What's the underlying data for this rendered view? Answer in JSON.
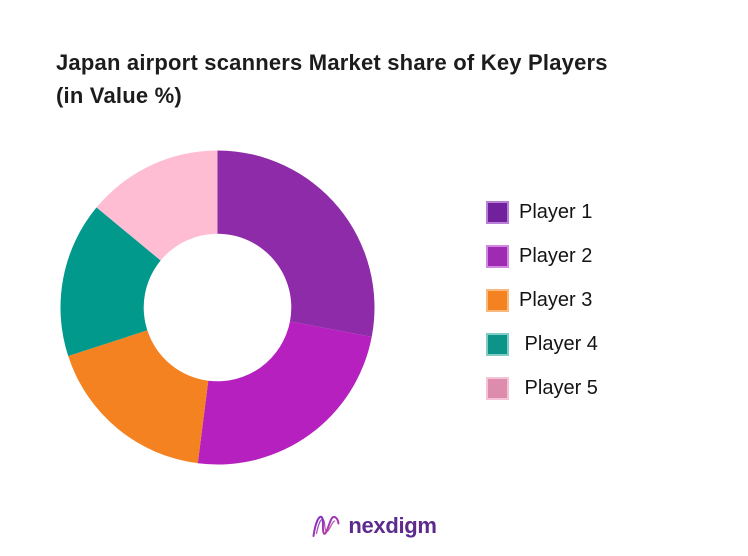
{
  "page": {
    "background": "#FFFFFF"
  },
  "header": {
    "title": "Japan airport scanners Market share of Key Players\n(in Value %)",
    "color": "#1C1C1C"
  },
  "chart_data": {
    "type": "pie",
    "subtype": "donut",
    "title": "Japan airport scanners Market share of Key Players (in Value %)",
    "labels": [
      "Player 1",
      "Player 2",
      "Player 3",
      "Player 4",
      "Player 5"
    ],
    "values": [
      28,
      24,
      18,
      16,
      14
    ],
    "colors": [
      "#8E2BA8",
      "#B520BE",
      "#F58221",
      "#00998C",
      "#FFBDD4"
    ],
    "start_angle_deg": 0,
    "direction": "clockwise",
    "inner_radius_ratio": 0.47,
    "legend_position": "right",
    "data_labels_shown": false
  },
  "legend": {
    "items": [
      {
        "label": "Player 1",
        "swatch_color": "#71219B",
        "swatch_border": "#B77FD6"
      },
      {
        "label": "Player 2",
        "swatch_color": "#A02BB3",
        "swatch_border": "#D089DE"
      },
      {
        "label": "Player 3",
        "swatch_color": "#F58221",
        "swatch_border": "#F9B87D"
      },
      {
        "label": " Player 4",
        "swatch_color": "#0D9488",
        "swatch_border": "#83CCC4"
      },
      {
        "label": " Player 5",
        "swatch_color": "#DE8CAE",
        "swatch_border": "#F4C3D6"
      }
    ]
  },
  "footer": {
    "logo_text": "nexdigm",
    "logo_color": "#5D2B8E",
    "logo_gradient_start": "#7B2FC1",
    "logo_gradient_end": "#C93D9B"
  }
}
